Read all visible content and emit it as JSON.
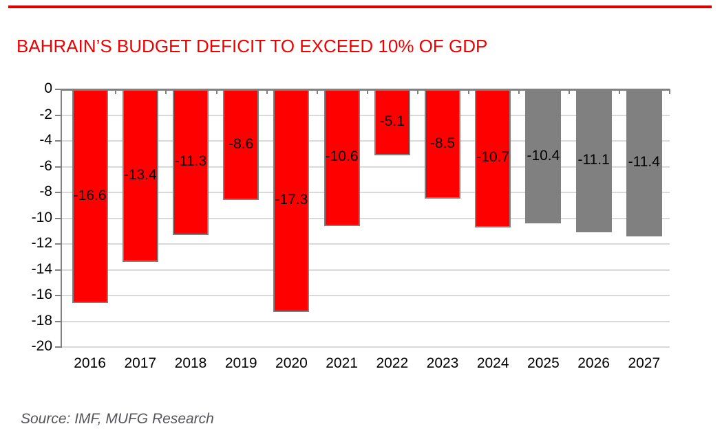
{
  "page": {
    "title": "BAHRAIN’S BUDGET DEFICIT TO EXCEED 10% OF GDP",
    "source": "Source: IMF, MUFG Research"
  },
  "colors": {
    "title_red": "#f00000",
    "rule_red": "#d90000",
    "bar_actual": "#ff0000",
    "bar_forecast": "#808080",
    "bar_border": "#808080",
    "axis_gray": "#808080",
    "gridline_gray": "#d9d9d9",
    "label_black": "#000000",
    "source_gray": "#54565b"
  },
  "chart_data": {
    "type": "bar",
    "title": "BAHRAIN’S BUDGET DEFICIT TO EXCEED 10% OF GDP",
    "categories": [
      "2016",
      "2017",
      "2018",
      "2019",
      "2020",
      "2021",
      "2022",
      "2023",
      "2024",
      "2025",
      "2026",
      "2027"
    ],
    "values": [
      -16.6,
      -13.4,
      -11.3,
      -8.6,
      -17.3,
      -10.6,
      -5.1,
      -8.5,
      -10.7,
      -10.4,
      -11.1,
      -11.4
    ],
    "data_labels": [
      "-16.6",
      "-13.4",
      "-11.3",
      "-8.6",
      "-17.3",
      "-10.6",
      "-5.1",
      "-8.5",
      "-10.7",
      "-10.4",
      "-11.1",
      "-11.4"
    ],
    "bar_styles": [
      "actual",
      "actual",
      "actual",
      "actual",
      "actual",
      "actual",
      "actual",
      "actual",
      "actual",
      "forecast",
      "forecast",
      "forecast"
    ],
    "series_legend": [
      {
        "name": "actual",
        "color": "#ff0000"
      },
      {
        "name": "forecast",
        "color": "#808080"
      }
    ],
    "xlabel": "",
    "ylabel": "",
    "ylim": [
      -20,
      0
    ],
    "yticks": [
      0,
      -2,
      -4,
      -6,
      -8,
      -10,
      -12,
      -14,
      -16,
      -18,
      -20
    ],
    "grid": true,
    "legend_position": "none"
  }
}
